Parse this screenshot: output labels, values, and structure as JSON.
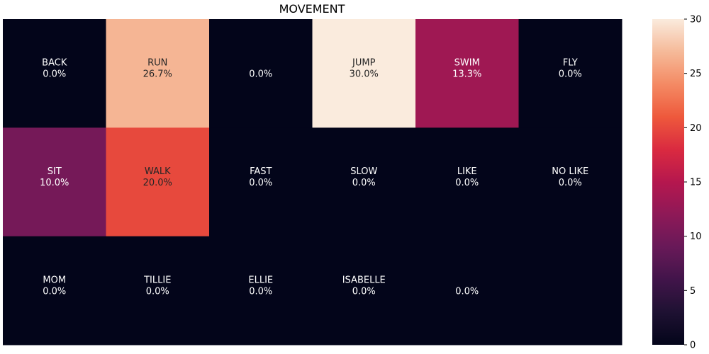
{
  "chart_data": {
    "type": "heatmap",
    "title": "MOVEMENT",
    "rows": 3,
    "cols": 6,
    "cells": [
      [
        {
          "label": "BACK",
          "value": 0.0,
          "text": "0.0%"
        },
        {
          "label": "RUN",
          "value": 26.7,
          "text": "26.7%"
        },
        {
          "label": "",
          "value": 0.0,
          "text": "0.0%"
        },
        {
          "label": "JUMP",
          "value": 30.0,
          "text": "30.0%"
        },
        {
          "label": "SWIM",
          "value": 13.3,
          "text": "13.3%"
        },
        {
          "label": "FLY",
          "value": 0.0,
          "text": "0.0%"
        }
      ],
      [
        {
          "label": "SIT",
          "value": 10.0,
          "text": "10.0%"
        },
        {
          "label": "WALK",
          "value": 20.0,
          "text": "20.0%"
        },
        {
          "label": "FAST",
          "value": 0.0,
          "text": "0.0%"
        },
        {
          "label": "SLOW",
          "value": 0.0,
          "text": "0.0%"
        },
        {
          "label": "LIKE",
          "value": 0.0,
          "text": "0.0%"
        },
        {
          "label": "NO LIKE",
          "value": 0.0,
          "text": "0.0%"
        }
      ],
      [
        {
          "label": "MOM",
          "value": 0.0,
          "text": "0.0%"
        },
        {
          "label": "TILLIE",
          "value": 0.0,
          "text": "0.0%"
        },
        {
          "label": "ELLIE",
          "value": 0.0,
          "text": "0.0%"
        },
        {
          "label": "ISABELLE",
          "value": 0.0,
          "text": "0.0%"
        },
        {
          "label": "",
          "value": 0.0,
          "text": "0.0%"
        },
        {
          "label": "",
          "value": 0.0,
          "text": ""
        }
      ]
    ],
    "colorbar": {
      "min": 0,
      "max": 30,
      "ticks": [
        0,
        5,
        10,
        15,
        20,
        25,
        30
      ],
      "colormap": "rocket"
    },
    "grid": false,
    "legend": "right"
  }
}
